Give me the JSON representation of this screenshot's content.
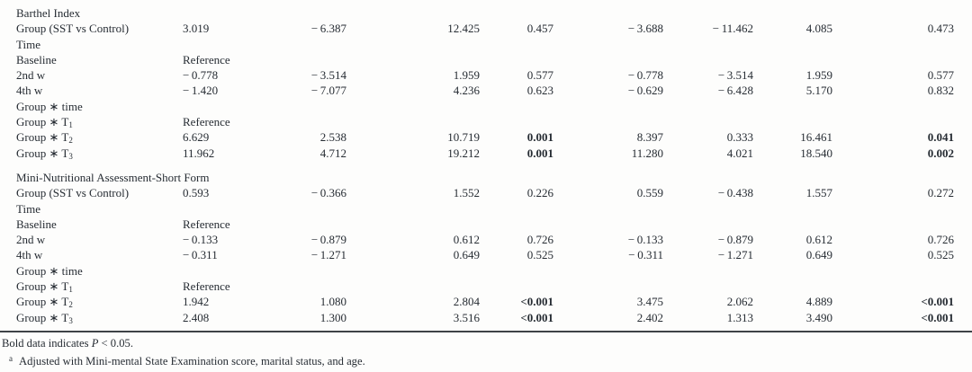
{
  "colors": {
    "text": "#262c33",
    "rule": "#3e4246",
    "background": "#fdfdfc"
  },
  "table": {
    "sections": [
      {
        "header": "Barthel Index",
        "rows": [
          {
            "label": "Group (SST vs Control)",
            "cells": [
              "3.019",
              "− 6.387",
              "12.425",
              "0.457",
              "− 3.688",
              "− 11.462",
              "4.085",
              "0.473"
            ]
          },
          {
            "label": "Time",
            "cells": []
          },
          {
            "label": "Baseline",
            "cells": [
              "Reference"
            ]
          },
          {
            "label": "2nd w",
            "cells": [
              "− 0.778",
              "− 3.514",
              "1.959",
              "0.577",
              "− 0.778",
              "− 3.514",
              "1.959",
              "0.577"
            ]
          },
          {
            "label": "4th w",
            "cells": [
              "− 1.420",
              "− 7.077",
              "4.236",
              "0.623",
              "− 0.629",
              "− 6.428",
              "5.170",
              "0.832"
            ]
          },
          {
            "label": "Group ∗ time",
            "cells": []
          },
          {
            "label": "Group ∗ T",
            "label_sub": "1",
            "cells": [
              "Reference"
            ]
          },
          {
            "label": "Group ∗ T",
            "label_sub": "2",
            "cells": [
              "6.629",
              "2.538",
              "10.719",
              "0.001",
              "8.397",
              "0.333",
              "16.461",
              "0.041"
            ],
            "bold_cells": [
              3,
              7
            ]
          },
          {
            "label": "Group ∗ T",
            "label_sub": "3",
            "cells": [
              "11.962",
              "4.712",
              "19.212",
              "0.001",
              "11.280",
              "4.021",
              "18.540",
              "0.002"
            ],
            "bold_cells": [
              3,
              7
            ]
          }
        ]
      },
      {
        "header": "Mini-Nutritional Assessment-Short Form",
        "rows": [
          {
            "label": "Group (SST vs Control)",
            "cells": [
              "0.593",
              "− 0.366",
              "1.552",
              "0.226",
              "0.559",
              "− 0.438",
              "1.557",
              "0.272"
            ]
          },
          {
            "label": "Time",
            "cells": []
          },
          {
            "label": "Baseline",
            "cells": [
              "Reference"
            ]
          },
          {
            "label": "2nd w",
            "cells": [
              "− 0.133",
              "− 0.879",
              "0.612",
              "0.726",
              "− 0.133",
              "− 0.879",
              "0.612",
              "0.726"
            ]
          },
          {
            "label": "4th w",
            "cells": [
              "− 0.311",
              "− 1.271",
              "0.649",
              "0.525",
              "− 0.311",
              "− 1.271",
              "0.649",
              "0.525"
            ]
          },
          {
            "label": "Group ∗ time",
            "cells": []
          },
          {
            "label": "Group ∗ T",
            "label_sub": "1",
            "cells": [
              "Reference"
            ]
          },
          {
            "label": "Group ∗ T",
            "label_sub": "2",
            "cells": [
              "1.942",
              "1.080",
              "2.804",
              "<0.001",
              "3.475",
              "2.062",
              "4.889",
              "<0.001"
            ],
            "bold_cells": [
              3,
              7
            ]
          },
          {
            "label": "Group ∗ T",
            "label_sub": "3",
            "cells": [
              "2.408",
              "1.300",
              "3.516",
              "<0.001",
              "2.402",
              "1.313",
              "3.490",
              "<0.001"
            ],
            "bold_cells": [
              3,
              7
            ]
          }
        ]
      }
    ]
  },
  "footnotes": {
    "bold_note": {
      "pre": "Bold data indicates ",
      "var": "P",
      "post": " < 0.05."
    },
    "adjust_note": {
      "marker": "a",
      "text": "Adjusted with Mini-mental State Examination score, marital status, and age."
    }
  }
}
